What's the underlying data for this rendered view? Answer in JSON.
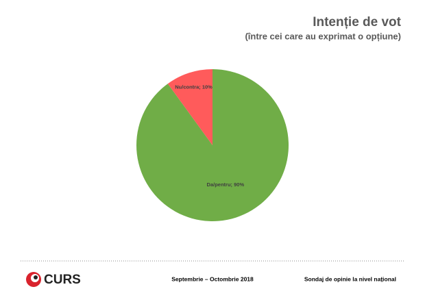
{
  "chart_data": {
    "type": "pie",
    "title": "Intenție de vot",
    "subtitle": "(între cei care au exprimat o opțiune)",
    "values": [
      90,
      10
    ],
    "value_labels": [
      "Da/pentru; 90%",
      "Nu/contra; 10%"
    ],
    "colors": [
      "#70ad47",
      "#ff5b5b"
    ]
  },
  "footer": {
    "logo": "CURS",
    "period": "Septembrie – Octombrie 2018",
    "note": "Sondaj de opinie la nivel național"
  }
}
